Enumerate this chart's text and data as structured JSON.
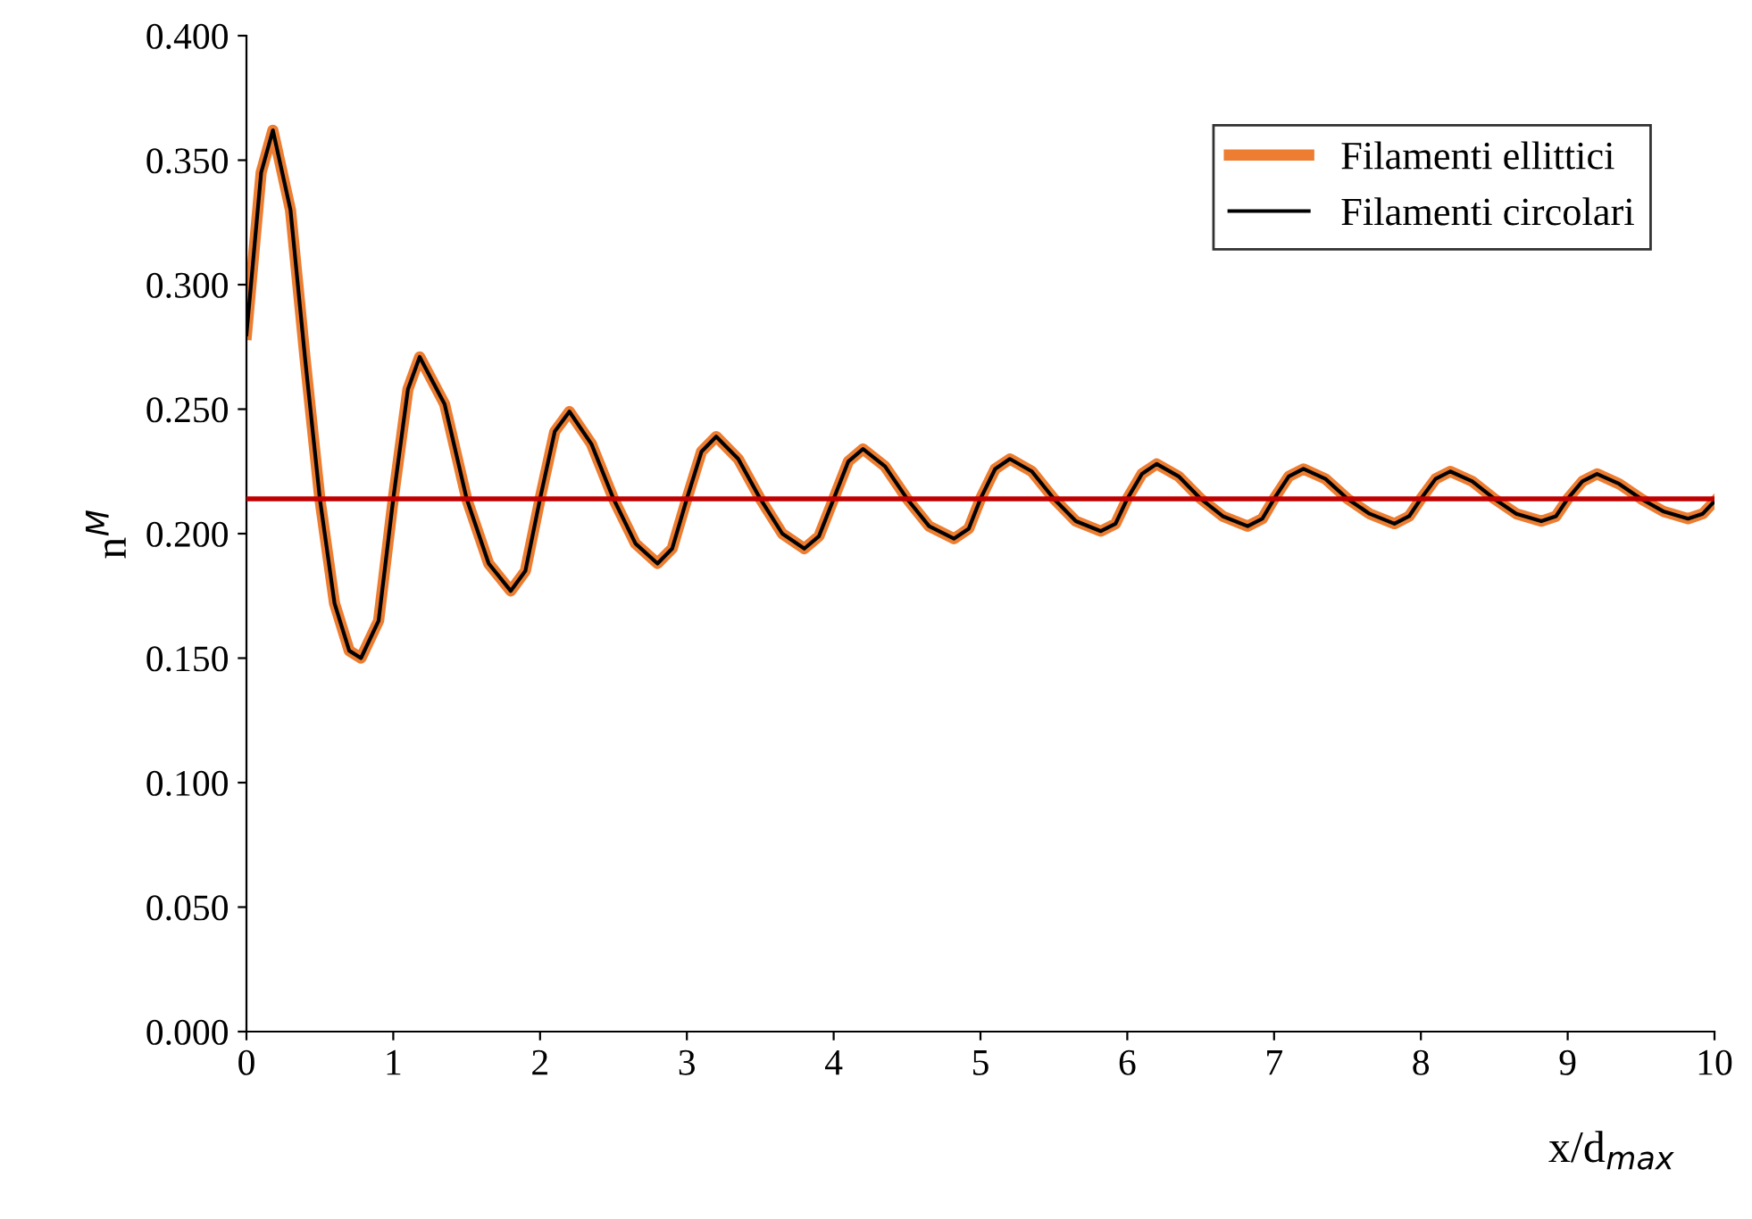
{
  "chart_data": {
    "type": "line",
    "xlabel": "x/d$_{max}$",
    "ylabel": "n$^{M}$",
    "x": [
      0,
      0.1,
      0.18,
      0.3,
      0.4,
      0.5,
      0.6,
      0.7,
      0.78,
      0.9,
      1.0,
      1.1,
      1.18,
      1.35,
      1.5,
      1.65,
      1.8,
      1.9,
      2.0,
      2.1,
      2.2,
      2.35,
      2.5,
      2.65,
      2.8,
      2.9,
      3.0,
      3.1,
      3.2,
      3.35,
      3.5,
      3.65,
      3.8,
      3.9,
      4.0,
      4.1,
      4.2,
      4.35,
      4.5,
      4.65,
      4.82,
      4.92,
      5.0,
      5.1,
      5.2,
      5.35,
      5.5,
      5.65,
      5.82,
      5.92,
      6.0,
      6.1,
      6.2,
      6.35,
      6.5,
      6.65,
      6.82,
      6.92,
      7.0,
      7.1,
      7.2,
      7.35,
      7.5,
      7.65,
      7.82,
      7.92,
      8.0,
      8.1,
      8.2,
      8.35,
      8.5,
      8.65,
      8.82,
      8.92,
      9.0,
      9.1,
      9.2,
      9.35,
      9.5,
      9.65,
      9.82,
      9.92,
      10.0
    ],
    "series": [
      {
        "name": "Filamenti ellittici",
        "color": "#ed7d31",
        "values": [
          0.28,
          0.345,
          0.362,
          0.33,
          0.27,
          0.214,
          0.172,
          0.153,
          0.15,
          0.165,
          0.214,
          0.258,
          0.271,
          0.252,
          0.214,
          0.188,
          0.177,
          0.185,
          0.214,
          0.241,
          0.249,
          0.236,
          0.214,
          0.196,
          0.188,
          0.194,
          0.214,
          0.233,
          0.239,
          0.23,
          0.214,
          0.2,
          0.194,
          0.199,
          0.214,
          0.229,
          0.234,
          0.227,
          0.214,
          0.203,
          0.198,
          0.202,
          0.214,
          0.226,
          0.23,
          0.225,
          0.214,
          0.205,
          0.201,
          0.204,
          0.214,
          0.224,
          0.228,
          0.223,
          0.214,
          0.207,
          0.203,
          0.206,
          0.214,
          0.223,
          0.226,
          0.222,
          0.214,
          0.208,
          0.204,
          0.207,
          0.214,
          0.222,
          0.225,
          0.221,
          0.214,
          0.208,
          0.205,
          0.207,
          0.214,
          0.221,
          0.224,
          0.22,
          0.214,
          0.209,
          0.206,
          0.208,
          0.213
        ]
      },
      {
        "name": "Filamenti circolari",
        "color": "#000000",
        "values": [
          0.28,
          0.345,
          0.362,
          0.33,
          0.27,
          0.214,
          0.172,
          0.153,
          0.15,
          0.165,
          0.214,
          0.258,
          0.271,
          0.252,
          0.214,
          0.188,
          0.177,
          0.185,
          0.214,
          0.241,
          0.249,
          0.236,
          0.214,
          0.196,
          0.188,
          0.194,
          0.214,
          0.233,
          0.239,
          0.23,
          0.214,
          0.2,
          0.194,
          0.199,
          0.214,
          0.229,
          0.234,
          0.227,
          0.214,
          0.203,
          0.198,
          0.202,
          0.214,
          0.226,
          0.23,
          0.225,
          0.214,
          0.205,
          0.201,
          0.204,
          0.214,
          0.224,
          0.228,
          0.223,
          0.214,
          0.207,
          0.203,
          0.206,
          0.214,
          0.223,
          0.226,
          0.222,
          0.214,
          0.208,
          0.204,
          0.207,
          0.214,
          0.222,
          0.225,
          0.221,
          0.214,
          0.208,
          0.205,
          0.207,
          0.214,
          0.221,
          0.224,
          0.22,
          0.214,
          0.209,
          0.206,
          0.208,
          0.213
        ]
      }
    ],
    "xlim": [
      0,
      10
    ],
    "xticks": [
      0,
      1,
      2,
      3,
      4,
      5,
      6,
      7,
      8,
      9,
      10
    ],
    "ylim": [
      0,
      0.4
    ],
    "yticks": [
      {
        "value": 0,
        "label": "0.000"
      },
      {
        "value": 0.05,
        "label": "0.050"
      },
      {
        "value": 0.1,
        "label": "0.100"
      },
      {
        "value": 0.15,
        "label": "0.150"
      },
      {
        "value": 0.2,
        "label": "0.200"
      },
      {
        "value": 0.25,
        "label": "0.250"
      },
      {
        "value": 0.3,
        "label": "0.300"
      },
      {
        "value": 0.35,
        "label": "0.350"
      },
      {
        "value": 0.4,
        "label": "0.400"
      }
    ],
    "ref_lines": [
      {
        "axis": "y",
        "value": 0.214,
        "color": "#c00000",
        "line_style": "solid"
      }
    ],
    "legend": "top right",
    "grid": false,
    "marker": "none",
    "line_style": "solid"
  }
}
